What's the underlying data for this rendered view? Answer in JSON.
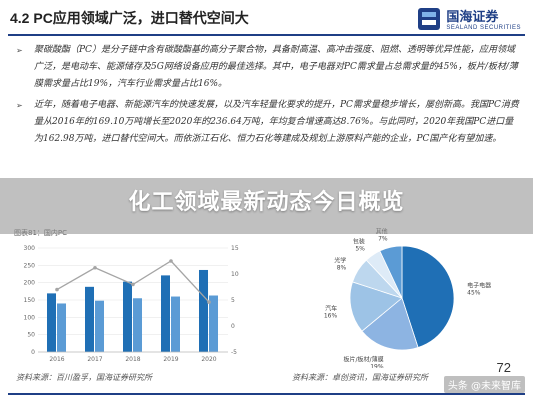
{
  "header": {
    "title": "4.2 PC应用领域广泛，进口替代空间大",
    "logo_cn": "国海证券",
    "logo_en": "SEALAND SECURITIES",
    "brand_color": "#1f3f86"
  },
  "bullets": [
    "聚碳酸酯（PC）是分子链中含有碳酸酯基的高分子聚合物，具备耐高温、高冲击强度、阻燃、透明等优异性能，应用领域广泛，是电动车、能源储存及5G网络设备应用的最佳选择。其中，电子电器对PC需求量占总需求量的45%，板片/板材/薄膜需求量占比19%，汽车行业需求量占比16%。",
    "近年，随着电子电器、新能源汽车的快速发展，以及汽车轻量化要求的提升，PC需求量稳步增长，屡创新高。我国PC消费量从2016年的169.10万吨增长至2020年的236.64万吨，年均复合增速高达8.76%。与此同时，2020年我国PC进口量为162.98万吨，进口替代空间大。而依浙江石化、恒力石化等建成及规划上游原料产能的企业，PC国产化有望加速。"
  ],
  "overlay": {
    "title": "化工领域最新动态今日概览"
  },
  "figures": {
    "left_caption": "图表81：国内PC",
    "right_caption": "",
    "left_source": "资料来源：百川盈孚，国海证券研究所",
    "right_source": "资料来源：卓创资讯，国海证券研究所"
  },
  "page_number": "72",
  "watermark": "头条 @未来智库",
  "chart_data": [
    {
      "type": "bar",
      "title": "",
      "categories": [
        "2016",
        "2017",
        "2018",
        "2019",
        "2020"
      ],
      "series": [
        {
          "name": "",
          "values": [
            169.1,
            188.0,
            203.0,
            221.0,
            236.64
          ],
          "color": "#1f6fb5",
          "kind": "bar"
        },
        {
          "name": "",
          "values": [
            140.0,
            148.0,
            155.0,
            160.0,
            162.98
          ],
          "color": "#5b9bd5",
          "kind": "bar"
        },
        {
          "name": "",
          "values": [
            7.0,
            11.2,
            8.0,
            12.5,
            4.6
          ],
          "color": "#a5a5a5",
          "kind": "line",
          "axis": "right"
        }
      ],
      "ylim": [
        0,
        300
      ],
      "y2lim": [
        -5,
        15
      ],
      "yticks": [
        "0",
        "50",
        "100",
        "150",
        "200",
        "250",
        "300"
      ],
      "y2ticks": [
        "-5",
        "0",
        "5",
        "10",
        "15"
      ]
    },
    {
      "type": "pie",
      "title": "",
      "slices": [
        {
          "label": "电子电器",
          "value": 45,
          "color": "#1f6fb5"
        },
        {
          "label": "板片/板材/薄膜",
          "value": 19,
          "color": "#8db4e2"
        },
        {
          "label": "汽车",
          "value": 16,
          "color": "#9dc3e6"
        },
        {
          "label": "光学",
          "value": 8,
          "color": "#bdd7ee"
        },
        {
          "label": "包装",
          "value": 5,
          "color": "#deebf7"
        },
        {
          "label": "其他",
          "value": 7,
          "color": "#5b9bd5"
        }
      ],
      "value_labels": [
        "45%",
        "19%",
        "16%",
        "8%",
        "5%",
        "7%"
      ]
    }
  ]
}
